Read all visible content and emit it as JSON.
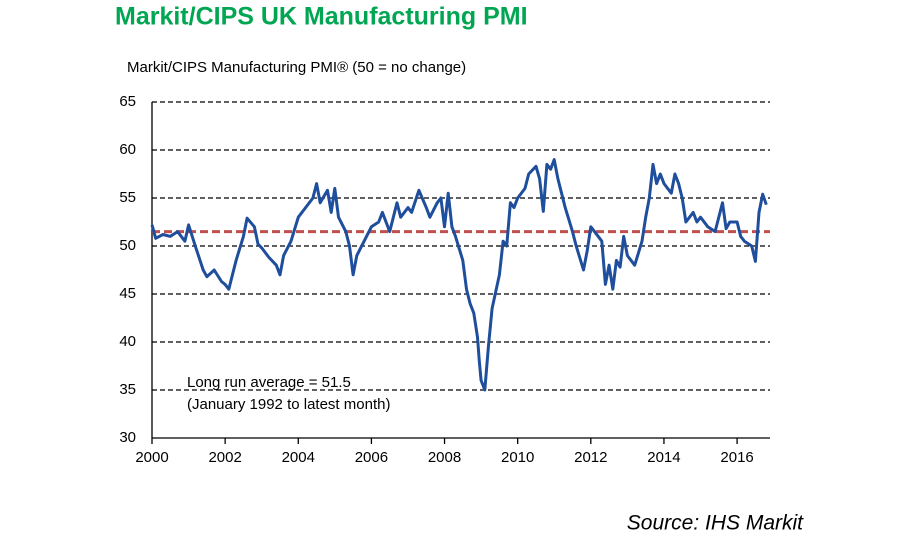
{
  "chart_data": {
    "type": "line",
    "title": "Markit/CIPS UK Manufacturing PMI",
    "subtitle": "Markit/CIPS Manufacturing PMI® (50 = no change)",
    "annotation": [
      "Long run average = 51.5",
      "(January 1992 to latest month)"
    ],
    "source": "Source: IHS Markit",
    "average": 51.5,
    "average_color": "#c0504d",
    "xlim": [
      2000,
      2016.9
    ],
    "xticks": [
      2000,
      2002,
      2004,
      2006,
      2008,
      2010,
      2012,
      2014,
      2016
    ],
    "ylim": [
      30,
      65
    ],
    "yticks": [
      30,
      35,
      40,
      45,
      50,
      55,
      60,
      65
    ],
    "grid": true,
    "x": [
      2000.0,
      2000.1,
      2000.3,
      2000.5,
      2000.7,
      2000.9,
      2001.0,
      2001.2,
      2001.4,
      2001.5,
      2001.7,
      2001.9,
      2002.0,
      2002.1,
      2002.3,
      2002.5,
      2002.6,
      2002.8,
      2002.9,
      2003.0,
      2003.2,
      2003.4,
      2003.5,
      2003.6,
      2003.8,
      2004.0,
      2004.2,
      2004.4,
      2004.5,
      2004.6,
      2004.8,
      2004.9,
      2005.0,
      2005.1,
      2005.3,
      2005.4,
      2005.5,
      2005.6,
      2005.8,
      2006.0,
      2006.2,
      2006.3,
      2006.5,
      2006.7,
      2006.8,
      2007.0,
      2007.1,
      2007.3,
      2007.5,
      2007.6,
      2007.8,
      2007.9,
      2008.0,
      2008.1,
      2008.2,
      2008.3,
      2008.5,
      2008.6,
      2008.7,
      2008.8,
      2008.9,
      2008.95,
      2009.0,
      2009.1,
      2009.2,
      2009.3,
      2009.5,
      2009.6,
      2009.7,
      2009.8,
      2009.9,
      2010.0,
      2010.2,
      2010.3,
      2010.5,
      2010.6,
      2010.7,
      2010.8,
      2010.9,
      2011.0,
      2011.1,
      2011.3,
      2011.5,
      2011.6,
      2011.8,
      2011.9,
      2012.0,
      2012.1,
      2012.3,
      2012.4,
      2012.5,
      2012.6,
      2012.7,
      2012.8,
      2012.9,
      2013.0,
      2013.2,
      2013.4,
      2013.5,
      2013.6,
      2013.7,
      2013.8,
      2013.9,
      2014.0,
      2014.2,
      2014.3,
      2014.4,
      2014.5,
      2014.6,
      2014.8,
      2014.9,
      2015.0,
      2015.2,
      2015.4,
      2015.6,
      2015.7,
      2015.8,
      2016.0,
      2016.1,
      2016.2,
      2016.4,
      2016.5,
      2016.6,
      2016.7,
      2016.8
    ],
    "series": [
      {
        "name": "PMI",
        "color": "#1f4e9c",
        "values": [
          52.2,
          50.8,
          51.2,
          51.0,
          51.5,
          50.5,
          52.2,
          49.8,
          47.5,
          46.8,
          47.5,
          46.3,
          46.0,
          45.5,
          48.5,
          51.0,
          52.9,
          52.0,
          50.2,
          49.8,
          48.8,
          48.0,
          47.0,
          49.0,
          50.5,
          53.0,
          54.0,
          55.0,
          56.5,
          54.5,
          55.8,
          53.5,
          56.0,
          53.0,
          51.5,
          50.0,
          47.0,
          49.0,
          50.5,
          52.0,
          52.5,
          53.5,
          51.5,
          54.5,
          53.0,
          54.0,
          53.5,
          55.8,
          54.0,
          53.0,
          54.5,
          55.0,
          52.0,
          55.5,
          52.0,
          51.0,
          48.5,
          45.5,
          44.0,
          43.0,
          40.5,
          38.0,
          36.0,
          35.0,
          39.5,
          43.5,
          47.0,
          50.5,
          50.0,
          54.5,
          54.0,
          55.0,
          56.0,
          57.5,
          58.3,
          57.0,
          53.6,
          58.5,
          58.0,
          59.0,
          57.0,
          54.0,
          51.5,
          50.0,
          47.5,
          49.5,
          52.0,
          51.5,
          50.5,
          46.0,
          48.0,
          45.5,
          48.5,
          47.8,
          51.0,
          49.0,
          48.0,
          50.5,
          53.0,
          55.0,
          58.5,
          56.5,
          57.5,
          56.5,
          55.5,
          57.5,
          56.5,
          55.0,
          52.5,
          53.5,
          52.5,
          53.0,
          52.0,
          51.5,
          54.5,
          51.8,
          52.5,
          52.5,
          51.0,
          50.5,
          50.0,
          48.4,
          53.5,
          55.4,
          54.3
        ]
      }
    ]
  }
}
